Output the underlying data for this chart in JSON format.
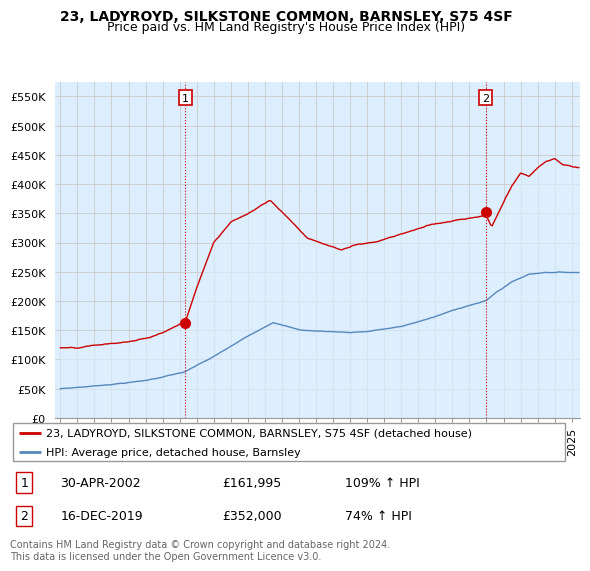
{
  "title": "23, LADYROYD, SILKSTONE COMMON, BARNSLEY, S75 4SF",
  "subtitle": "Price paid vs. HM Land Registry's House Price Index (HPI)",
  "ylabel_ticks": [
    "£0",
    "£50K",
    "£100K",
    "£150K",
    "£200K",
    "£250K",
    "£300K",
    "£350K",
    "£400K",
    "£450K",
    "£500K",
    "£550K"
  ],
  "ytick_values": [
    0,
    50000,
    100000,
    150000,
    200000,
    250000,
    300000,
    350000,
    400000,
    450000,
    500000,
    550000
  ],
  "ylim": [
    0,
    575000
  ],
  "xlim_start": 1994.7,
  "xlim_end": 2025.5,
  "sale1_x": 2002.33,
  "sale1_y": 161995,
  "sale2_x": 2019.96,
  "sale2_y": 352000,
  "sale1_label": "1",
  "sale2_label": "2",
  "sale1_date": "30-APR-2002",
  "sale1_price": "£161,995",
  "sale1_hpi": "109% ↑ HPI",
  "sale2_date": "16-DEC-2019",
  "sale2_price": "£352,000",
  "sale2_hpi": "74% ↑ HPI",
  "red_color": "#cc0000",
  "blue_color": "#5588bb",
  "fill_color": "#ddeeff",
  "vline_color": "#cc0000",
  "grid_color": "#cccccc",
  "bg_color": "#ddeeff",
  "legend_label_red": "23, LADYROYD, SILKSTONE COMMON, BARNSLEY, S75 4SF (detached house)",
  "legend_label_blue": "HPI: Average price, detached house, Barnsley",
  "footer": "Contains HM Land Registry data © Crown copyright and database right 2024.\nThis data is licensed under the Open Government Licence v3.0.",
  "title_fontsize": 10,
  "subtitle_fontsize": 9,
  "tick_fontsize": 8,
  "legend_fontsize": 8,
  "footer_fontsize": 7
}
